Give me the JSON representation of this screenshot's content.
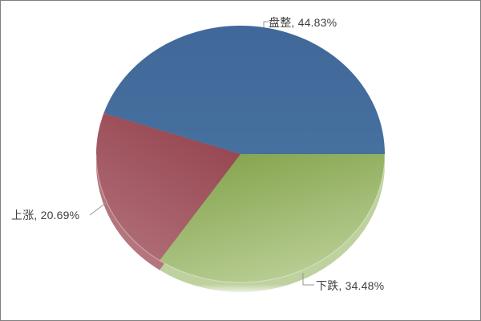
{
  "frame": {
    "background": "#ffffff",
    "border_color": "#7f7f7f"
  },
  "chart_data": {
    "type": "pie",
    "effect": "3d",
    "title": "",
    "legend": "none",
    "unit": "%",
    "categories": [
      "盘整",
      "下跌",
      "上涨"
    ],
    "values": [
      44.83,
      34.48,
      20.69
    ],
    "slices": [
      {
        "name": "盘整",
        "value": 44.83,
        "label": "盘整, 44.83%",
        "color": "#40689a",
        "color_light": "#46709e",
        "side_color": "#8fa8c5"
      },
      {
        "name": "下跌",
        "value": 34.48,
        "label": "下跌, 34.48%",
        "color": "#7fa046",
        "color_light": "#b7cc91",
        "side_color": "#bed19f"
      },
      {
        "name": "上涨",
        "value": 20.69,
        "label": "上涨, 20.69%",
        "color": "#95444f",
        "color_light": "#b17079",
        "side_color": "#b4757c"
      }
    ],
    "label_color": "#3f3f3f",
    "leader_line_color": "#969696"
  }
}
